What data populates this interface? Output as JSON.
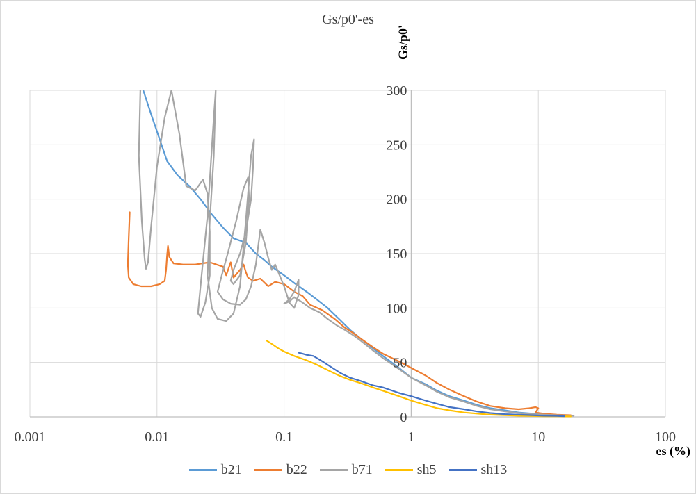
{
  "chart_data": {
    "type": "line",
    "title": "Gs/p0'-es",
    "xlabel": "es (%)",
    "ylabel": "Gs/p0'",
    "xscale": "log",
    "xlim": [
      0.001,
      100
    ],
    "ylim": [
      0,
      300
    ],
    "grid": true,
    "legend_position": "bottom",
    "x_ticks": [
      0.001,
      0.01,
      0.1,
      1,
      10,
      100
    ],
    "x_tick_labels": [
      "0.001",
      "0.01",
      "0.1",
      "1",
      "10",
      "100"
    ],
    "y_ticks": [
      0,
      50,
      100,
      150,
      200,
      250,
      300
    ],
    "y_tick_labels": [
      "0",
      "50",
      "100",
      "150",
      "200",
      "250",
      "300"
    ],
    "series": [
      {
        "name": "b21",
        "color": "#5b9bd5",
        "x": [
          0.0078,
          0.009,
          0.0105,
          0.012,
          0.0145,
          0.018,
          0.022,
          0.027,
          0.033,
          0.04,
          0.05,
          0.06,
          0.07,
          0.08,
          0.1,
          0.12,
          0.15,
          0.18,
          0.22,
          0.27,
          0.33,
          0.4,
          0.5,
          0.6,
          0.8,
          1.0,
          1.3,
          1.6,
          2.0,
          2.6,
          3.3,
          4.2,
          5.5,
          7.0,
          9.0,
          11,
          14,
          18
        ],
        "y": [
          300,
          278,
          255,
          235,
          222,
          212,
          200,
          186,
          174,
          164,
          160,
          150,
          144,
          138,
          130,
          123,
          115,
          108,
          100,
          90,
          80,
          72,
          63,
          56,
          45,
          36,
          30,
          24,
          19,
          15,
          11,
          8,
          6,
          4,
          3,
          2,
          1.5,
          1
        ]
      },
      {
        "name": "b22",
        "color": "#ed7d31",
        "x": [
          0.0061,
          0.006,
          0.0059,
          0.006,
          0.0065,
          0.0075,
          0.009,
          0.0105,
          0.0115,
          0.0118,
          0.012,
          0.0122,
          0.0125,
          0.0135,
          0.016,
          0.02,
          0.026,
          0.033,
          0.035,
          0.038,
          0.04,
          0.045,
          0.048,
          0.05,
          0.052,
          0.057,
          0.065,
          0.075,
          0.085,
          0.1,
          0.12,
          0.14,
          0.16,
          0.2,
          0.25,
          0.3,
          0.35,
          0.4,
          0.5,
          0.6,
          0.8,
          1.0,
          1.3,
          1.6,
          2.0,
          2.6,
          3.3,
          4.2,
          5.5,
          7.0,
          8.5,
          9.5,
          10.0,
          9.5,
          11,
          14,
          18
        ],
        "y": [
          188,
          165,
          140,
          128,
          122,
          120,
          120,
          122,
          125,
          135,
          148,
          157,
          147,
          141,
          140,
          140,
          142,
          138,
          130,
          142,
          128,
          135,
          140,
          133,
          128,
          125,
          127,
          120,
          124,
          122,
          115,
          111,
          103,
          98,
          90,
          82,
          77,
          72,
          64,
          58,
          51,
          45,
          38,
          31,
          25,
          19,
          14,
          10,
          8,
          7,
          8,
          9,
          8,
          4,
          3,
          2,
          1.5
        ]
      },
      {
        "name": "b71",
        "color": "#a5a5a5",
        "x": [
          0.0074,
          0.0072,
          0.0076,
          0.008,
          0.0082,
          0.0085,
          0.009,
          0.01,
          0.0115,
          0.013,
          0.015,
          0.017,
          0.02,
          0.023,
          0.025,
          0.026,
          0.026,
          0.024,
          0.022,
          0.021,
          0.022,
          0.025,
          0.028,
          0.029,
          0.028,
          0.026,
          0.025,
          0.027,
          0.03,
          0.035,
          0.04,
          0.045,
          0.05,
          0.055,
          0.058,
          0.057,
          0.055,
          0.05,
          0.045,
          0.04,
          0.038,
          0.04,
          0.045,
          0.05,
          0.053,
          0.052,
          0.048,
          0.042,
          0.036,
          0.032,
          0.03,
          0.033,
          0.038,
          0.045,
          0.05,
          0.055,
          0.06,
          0.065,
          0.07,
          0.075,
          0.08,
          0.085,
          0.09,
          0.1,
          0.11,
          0.12,
          0.13,
          0.13,
          0.12,
          0.11,
          0.1,
          0.11,
          0.12,
          0.14,
          0.16,
          0.19,
          0.22,
          0.26,
          0.3,
          0.35,
          0.4,
          0.5,
          0.6,
          0.8,
          1.0,
          1.3,
          1.6,
          2.0,
          2.6,
          3.3,
          4.2,
          5.5,
          7.0,
          9.0,
          11,
          14,
          19
        ],
        "y": [
          300,
          240,
          180,
          145,
          136,
          142,
          175,
          230,
          275,
          300,
          260,
          212,
          208,
          218,
          205,
          170,
          130,
          105,
          92,
          95,
          120,
          185,
          275,
          300,
          240,
          180,
          130,
          100,
          90,
          88,
          95,
          120,
          180,
          240,
          255,
          230,
          200,
          170,
          150,
          135,
          125,
          122,
          130,
          160,
          200,
          220,
          210,
          180,
          150,
          128,
          115,
          108,
          104,
          103,
          108,
          120,
          140,
          172,
          160,
          146,
          135,
          140,
          133,
          120,
          105,
          100,
          112,
          126,
          115,
          108,
          104,
          106,
          110,
          105,
          100,
          96,
          90,
          84,
          80,
          75,
          70,
          61,
          54,
          44,
          36,
          29,
          23,
          18,
          14,
          10,
          7,
          5,
          3.5,
          2.5,
          2,
          1.5,
          1
        ]
      },
      {
        "name": "sh5",
        "color": "#ffc000",
        "x": [
          0.073,
          0.08,
          0.09,
          0.1,
          0.12,
          0.15,
          0.18,
          0.22,
          0.27,
          0.33,
          0.4,
          0.5,
          0.6,
          0.8,
          1.0,
          1.3,
          1.6,
          2.0,
          2.6,
          3.3,
          4.2,
          5.5,
          7.0,
          9.0,
          11,
          14,
          18
        ],
        "y": [
          70,
          67,
          63,
          60,
          56,
          52,
          48,
          43,
          38,
          34,
          31,
          27,
          24,
          19,
          15,
          11,
          8,
          6,
          4,
          3,
          2,
          1.5,
          1,
          0.8,
          0.6,
          0.5,
          0.4
        ]
      },
      {
        "name": "sh13",
        "color": "#4472c4",
        "x": [
          0.13,
          0.14,
          0.15,
          0.17,
          0.2,
          0.24,
          0.28,
          0.33,
          0.4,
          0.5,
          0.6,
          0.8,
          1.0,
          1.3,
          1.6,
          2.0,
          2.6,
          3.3,
          4.2,
          5.5,
          7.0,
          9.0,
          11,
          14,
          16
        ],
        "y": [
          59,
          58,
          57,
          56,
          51,
          45,
          40,
          36,
          33,
          29,
          27,
          22,
          19,
          15,
          12,
          9,
          7,
          5,
          3.5,
          2.5,
          2,
          1.5,
          1,
          0.8,
          0.6
        ]
      }
    ]
  }
}
